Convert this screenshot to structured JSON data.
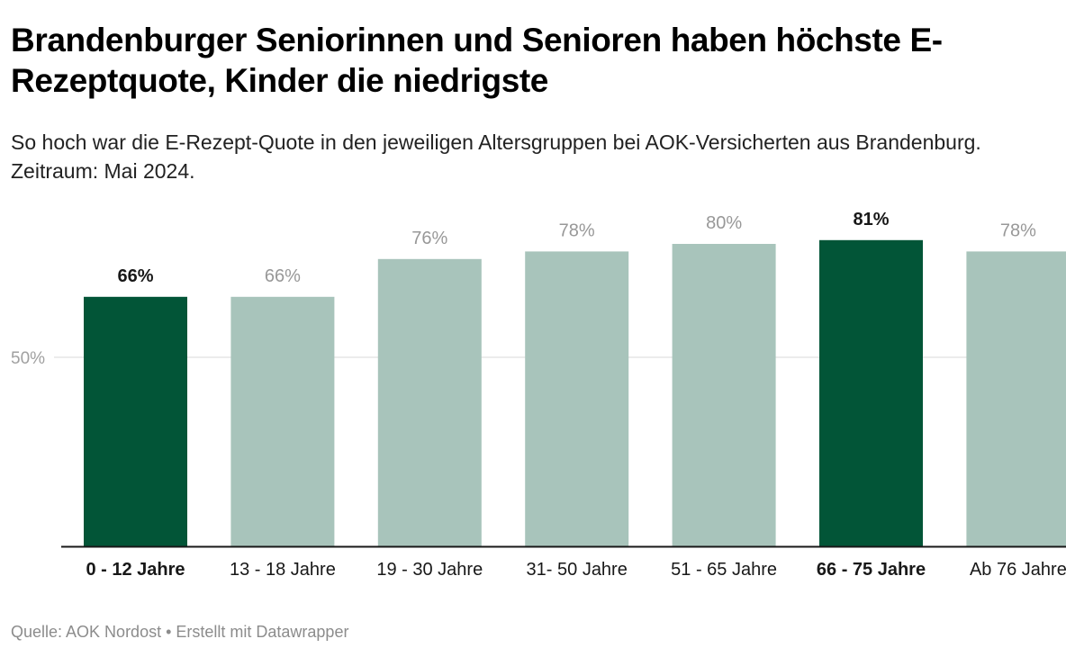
{
  "header": {
    "title": "Brandenburger Seniorinnen und Senioren haben höchste E-Rezeptquote, Kinder die niedrigste",
    "subtitle": "So hoch war die E-Rezept-Quote in den jeweiligen Altersgruppen bei AOK-Versicherten aus Brandenburg. Zeitraum: Mai 2024."
  },
  "footer": {
    "source_label": "Quelle:",
    "source": "AOK Nordost",
    "separator": "•",
    "credit": "Erstellt mit Datawrapper",
    "text": "Quelle: AOK Nordost • Erstellt mit Datawrapper"
  },
  "colors": {
    "highlight": "#025537",
    "default": "#a8c4bb",
    "gridline": "#e6e6e6",
    "axis": "#181818",
    "label_highlight": "#181818",
    "label_default": "#989898",
    "tick_label": "#a0a0a0"
  },
  "chart_data": {
    "type": "bar",
    "title": "Brandenburger Seniorinnen und Senioren haben höchste E-Rezeptquote, Kinder die niedrigste",
    "xlabel": "",
    "ylabel": "",
    "categories": [
      "0 - 12 Jahre",
      "13 - 18 Jahre",
      "19 - 30 Jahre",
      "31- 50 Jahre",
      "51 - 65 Jahre",
      "66 - 75 Jahre",
      "Ab 76 Jahre"
    ],
    "values": [
      66,
      66,
      76,
      78,
      80,
      81,
      78
    ],
    "value_labels": [
      "66%",
      "66%",
      "76%",
      "78%",
      "80%",
      "81%",
      "78%"
    ],
    "highlighted": [
      true,
      false,
      false,
      false,
      false,
      true,
      false
    ],
    "unit": "%",
    "ylim": [
      0,
      85
    ],
    "yticks": [
      {
        "value": 50,
        "label": "50%"
      }
    ],
    "grid": true,
    "legend": "none"
  }
}
